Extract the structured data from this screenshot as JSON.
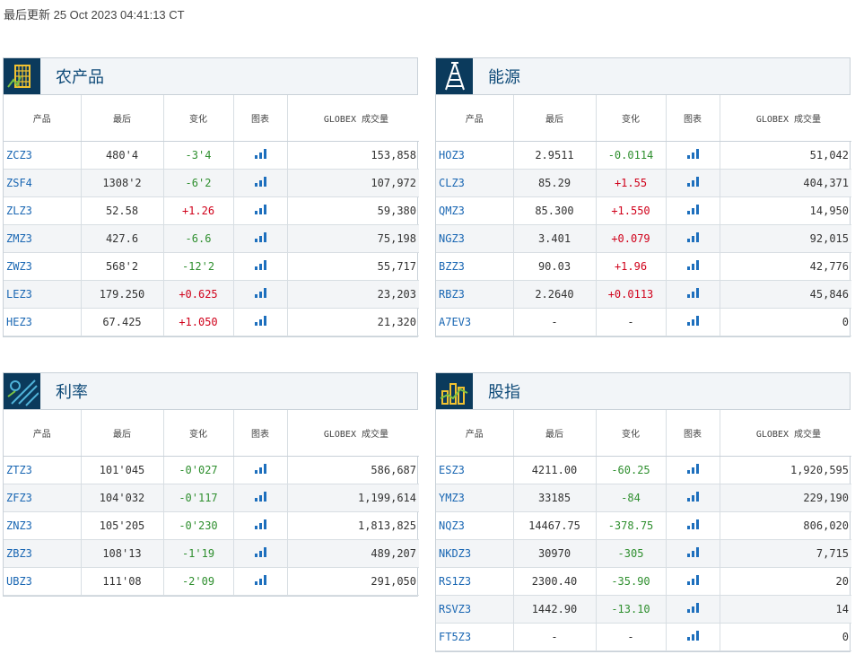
{
  "updated": "最后更新 25 Oct 2023 04:41:13 CT",
  "columns": [
    "产品",
    "最后",
    "变化",
    "图表",
    "GLOBEX 成交量"
  ],
  "panels": [
    {
      "title": "农产品",
      "icon": "agriculture-icon",
      "rows": [
        {
          "sym": "ZCZ3",
          "last": "480'4",
          "chg": "-3'4",
          "dir": "neg",
          "vol": "153,858"
        },
        {
          "sym": "ZSF4",
          "last": "1308'2",
          "chg": "-6'2",
          "dir": "neg",
          "vol": "107,972"
        },
        {
          "sym": "ZLZ3",
          "last": "52.58",
          "chg": "+1.26",
          "dir": "pos",
          "vol": "59,380"
        },
        {
          "sym": "ZMZ3",
          "last": "427.6",
          "chg": "-6.6",
          "dir": "neg",
          "vol": "75,198"
        },
        {
          "sym": "ZWZ3",
          "last": "568'2",
          "chg": "-12'2",
          "dir": "neg",
          "vol": "55,717"
        },
        {
          "sym": "LEZ3",
          "last": "179.250",
          "chg": "+0.625",
          "dir": "pos",
          "vol": "23,203"
        },
        {
          "sym": "HEZ3",
          "last": "67.425",
          "chg": "+1.050",
          "dir": "pos",
          "vol": "21,320"
        }
      ]
    },
    {
      "title": "能源",
      "icon": "oil-derrick-icon",
      "rows": [
        {
          "sym": "HOZ3",
          "last": "2.9511",
          "chg": "-0.0114",
          "dir": "neg",
          "vol": "51,042"
        },
        {
          "sym": "CLZ3",
          "last": "85.29",
          "chg": "+1.55",
          "dir": "pos",
          "vol": "404,371"
        },
        {
          "sym": "QMZ3",
          "last": "85.300",
          "chg": "+1.550",
          "dir": "pos",
          "vol": "14,950"
        },
        {
          "sym": "NGZ3",
          "last": "3.401",
          "chg": "+0.079",
          "dir": "pos",
          "vol": "92,015"
        },
        {
          "sym": "BZZ3",
          "last": "90.03",
          "chg": "+1.96",
          "dir": "pos",
          "vol": "42,776"
        },
        {
          "sym": "RBZ3",
          "last": "2.2640",
          "chg": "+0.0113",
          "dir": "pos",
          "vol": "45,846"
        },
        {
          "sym": "A7EV3",
          "last": "-",
          "chg": "-",
          "dir": "flat",
          "vol": "0"
        }
      ]
    },
    {
      "title": "利率",
      "icon": "interest-rate-icon",
      "rows": [
        {
          "sym": "ZTZ3",
          "last": "101'045",
          "chg": "-0'027",
          "dir": "neg",
          "vol": "586,687"
        },
        {
          "sym": "ZFZ3",
          "last": "104'032",
          "chg": "-0'117",
          "dir": "neg",
          "vol": "1,199,614"
        },
        {
          "sym": "ZNZ3",
          "last": "105'205",
          "chg": "-0'230",
          "dir": "neg",
          "vol": "1,813,825"
        },
        {
          "sym": "ZBZ3",
          "last": "108'13",
          "chg": "-1'19",
          "dir": "neg",
          "vol": "489,207"
        },
        {
          "sym": "UBZ3",
          "last": "111'08",
          "chg": "-2'09",
          "dir": "neg",
          "vol": "291,050"
        }
      ]
    },
    {
      "title": "股指",
      "icon": "stock-index-icon",
      "rows": [
        {
          "sym": "ESZ3",
          "last": "4211.00",
          "chg": "-60.25",
          "dir": "neg",
          "vol": "1,920,595"
        },
        {
          "sym": "YMZ3",
          "last": "33185",
          "chg": "-84",
          "dir": "neg",
          "vol": "229,190"
        },
        {
          "sym": "NQZ3",
          "last": "14467.75",
          "chg": "-378.75",
          "dir": "neg",
          "vol": "806,020"
        },
        {
          "sym": "NKDZ3",
          "last": "30970",
          "chg": "-305",
          "dir": "neg",
          "vol": "7,715"
        },
        {
          "sym": "RS1Z3",
          "last": "2300.40",
          "chg": "-35.90",
          "dir": "neg",
          "vol": "20"
        },
        {
          "sym": "RSVZ3",
          "last": "1442.90",
          "chg": "-13.10",
          "dir": "neg",
          "vol": "14"
        },
        {
          "sym": "FT5Z3",
          "last": "-",
          "chg": "-",
          "dir": "flat",
          "vol": "0"
        }
      ]
    }
  ]
}
